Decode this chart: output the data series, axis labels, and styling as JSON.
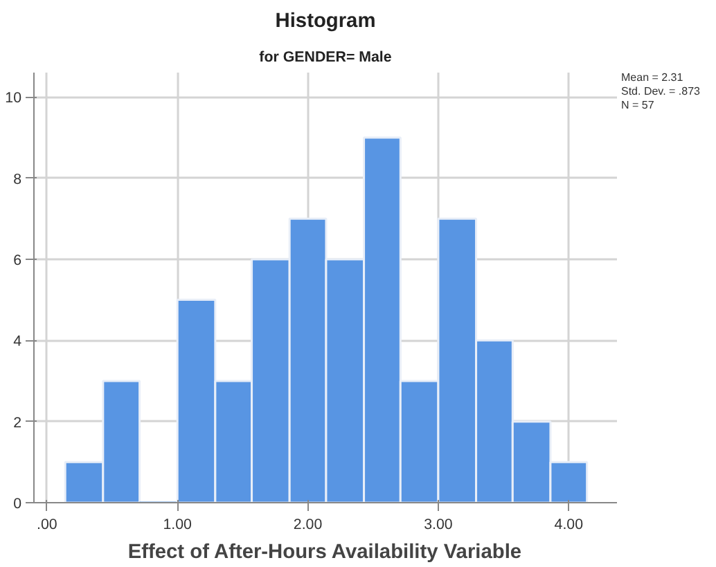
{
  "chart_data": {
    "type": "histogram",
    "title": "Histogram",
    "subtitle": "for GENDER= Male",
    "xlabel": "Effect of After-Hours Availability Variable",
    "bins": [
      0.14,
      0.43,
      0.71,
      1.0,
      1.29,
      1.57,
      1.86,
      2.14,
      2.43,
      2.71,
      3.0,
      3.29,
      3.57,
      3.86,
      4.14
    ],
    "values": [
      1,
      3,
      0,
      5,
      3,
      6,
      7,
      6,
      9,
      3,
      7,
      4,
      2,
      1
    ],
    "color": "#5895e3",
    "xlim": [
      -0.1,
      4.37
    ],
    "ylim": [
      0,
      10.6
    ],
    "xticks": [
      {
        "value": 0,
        "label": ".00"
      },
      {
        "value": 1,
        "label": "1.00"
      },
      {
        "value": 2,
        "label": "2.00"
      },
      {
        "value": 3,
        "label": "3.00"
      },
      {
        "value": 4,
        "label": "4.00"
      }
    ],
    "yticks": [
      0,
      2,
      4,
      6,
      8,
      10
    ],
    "grid": true,
    "annotations": [
      "Mean = 2.31",
      "Std. Dev. = .873",
      "N = 57"
    ]
  }
}
